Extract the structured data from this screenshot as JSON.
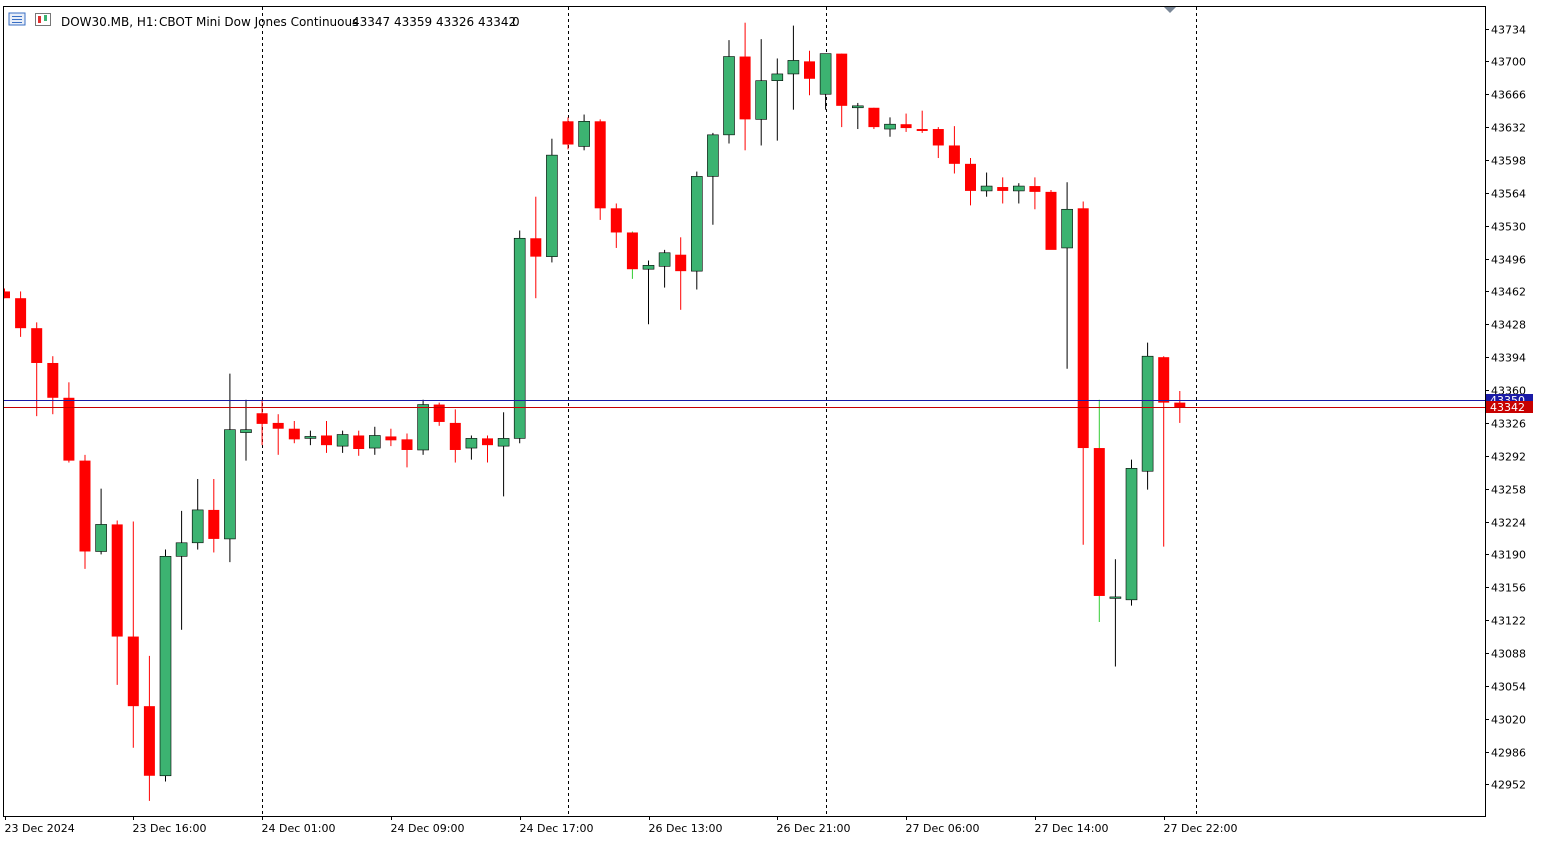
{
  "header": {
    "symbol": "DOW30.MB, H1:",
    "description": "CBOT Mini Dow Jones Continuous",
    "ohlc": "43347 43359 43326 43342",
    "volume": "0"
  },
  "colors": {
    "bull": "#3cb371",
    "bear": "#ff0000",
    "bid_line": "#1a1aa6",
    "ask_line": "#c80000",
    "frame": "#000000",
    "grid_separator": "#000000"
  },
  "chart_data": {
    "type": "candlestick",
    "ylim": [
      42930,
      43750
    ],
    "y_ticks": [
      43734,
      43700,
      43666,
      43632,
      43598,
      43564,
      43530,
      43496,
      43462,
      43428,
      43394,
      43360,
      43326,
      43292,
      43258,
      43224,
      43190,
      43156,
      43122,
      43088,
      43054,
      43020,
      42986,
      42952
    ],
    "x_labels": [
      {
        "index": 0,
        "text": "23 Dec 2024"
      },
      {
        "index": 8,
        "text": "23 Dec 16:00"
      },
      {
        "index": 16,
        "text": "24 Dec 01:00"
      },
      {
        "index": 24,
        "text": "24 Dec 09:00"
      },
      {
        "index": 32,
        "text": "24 Dec 17:00"
      },
      {
        "index": 40,
        "text": "26 Dec 13:00"
      },
      {
        "index": 48,
        "text": "26 Dec 21:00"
      },
      {
        "index": 56,
        "text": "27 Dec 06:00"
      },
      {
        "index": 64,
        "text": "27 Dec 14:00"
      },
      {
        "index": 72,
        "text": "27 Dec 22:00"
      }
    ],
    "separators": [
      16,
      35,
      51,
      74
    ],
    "price_labels": [
      {
        "value": 43350,
        "text": "43350",
        "color": "#1a1aa6"
      },
      {
        "value": 43342,
        "text": "43342",
        "color": "#c80000"
      }
    ],
    "candles": [
      {
        "o": 43462,
        "h": 43465,
        "l": 43455,
        "c": 43455
      },
      {
        "o": 43455,
        "h": 43462,
        "l": 43415,
        "c": 43424
      },
      {
        "o": 43424,
        "h": 43430,
        "l": 43333,
        "c": 43388
      },
      {
        "o": 43388,
        "h": 43395,
        "l": 43335,
        "c": 43352
      },
      {
        "o": 43352,
        "h": 43368,
        "l": 43285,
        "c": 43287
      },
      {
        "o": 43287,
        "h": 43293,
        "l": 43175,
        "c": 43193
      },
      {
        "o": 43193,
        "h": 43258,
        "l": 43190,
        "c": 43221
      },
      {
        "o": 43221,
        "h": 43225,
        "l": 43055,
        "c": 43105
      },
      {
        "o": 43105,
        "h": 43224,
        "l": 42990,
        "c": 43033
      },
      {
        "o": 43033,
        "h": 43085,
        "l": 42935,
        "c": 42961
      },
      {
        "o": 42961,
        "h": 43195,
        "l": 42955,
        "c": 43188
      },
      {
        "o": 43188,
        "h": 43235,
        "l": 43112,
        "c": 43202
      },
      {
        "o": 43202,
        "h": 43268,
        "l": 43195,
        "c": 43236
      },
      {
        "o": 43236,
        "h": 43268,
        "l": 43192,
        "c": 43206
      },
      {
        "o": 43206,
        "h": 43377,
        "l": 43182,
        "c": 43319
      },
      {
        "o": 43316,
        "h": 43350,
        "l": 43287,
        "c": 43319
      },
      {
        "o": 43336,
        "h": 43350,
        "l": 43303,
        "c": 43325
      },
      {
        "o": 43326,
        "h": 43335,
        "l": 43293,
        "c": 43320
      },
      {
        "o": 43320,
        "h": 43328,
        "l": 43305,
        "c": 43309
      },
      {
        "o": 43310,
        "h": 43318,
        "l": 43303,
        "c": 43312
      },
      {
        "o": 43313,
        "h": 43328,
        "l": 43295,
        "c": 43303
      },
      {
        "o": 43302,
        "h": 43318,
        "l": 43295,
        "c": 43314
      },
      {
        "o": 43313,
        "h": 43318,
        "l": 43292,
        "c": 43299
      },
      {
        "o": 43300,
        "h": 43322,
        "l": 43293,
        "c": 43313
      },
      {
        "o": 43312,
        "h": 43320,
        "l": 43302,
        "c": 43308
      },
      {
        "o": 43309,
        "h": 43315,
        "l": 43280,
        "c": 43298
      },
      {
        "o": 43298,
        "h": 43350,
        "l": 43293,
        "c": 43345
      },
      {
        "o": 43345,
        "h": 43347,
        "l": 43323,
        "c": 43327
      },
      {
        "o": 43326,
        "h": 43340,
        "l": 43285,
        "c": 43298
      },
      {
        "o": 43300,
        "h": 43313,
        "l": 43288,
        "c": 43310
      },
      {
        "o": 43310,
        "h": 43313,
        "l": 43285,
        "c": 43303
      },
      {
        "o": 43302,
        "h": 43337,
        "l": 43250,
        "c": 43310
      },
      {
        "o": 43310,
        "h": 43525,
        "l": 43305,
        "c": 43517
      },
      {
        "o": 43517,
        "h": 43560,
        "l": 43455,
        "c": 43498
      },
      {
        "o": 43498,
        "h": 43620,
        "l": 43492,
        "c": 43603
      },
      {
        "o": 43638,
        "h": 43642,
        "l": 43609,
        "c": 43614
      },
      {
        "o": 43612,
        "h": 43645,
        "l": 43608,
        "c": 43638
      },
      {
        "o": 43638,
        "h": 43640,
        "l": 43536,
        "c": 43548
      },
      {
        "o": 43548,
        "h": 43553,
        "l": 43507,
        "c": 43523
      },
      {
        "o": 43523,
        "h": 43524,
        "l": 43475,
        "c": 43485
      },
      {
        "o": 43485,
        "h": 43494,
        "l": 43428,
        "c": 43489
      },
      {
        "o": 43488,
        "h": 43505,
        "l": 43466,
        "c": 43502
      },
      {
        "o": 43500,
        "h": 43518,
        "l": 43443,
        "c": 43483
      },
      {
        "o": 43483,
        "h": 43586,
        "l": 43464,
        "c": 43581
      },
      {
        "o": 43581,
        "h": 43626,
        "l": 43531,
        "c": 43624
      },
      {
        "o": 43624,
        "h": 43722,
        "l": 43615,
        "c": 43705
      },
      {
        "o": 43705,
        "h": 43740,
        "l": 43608,
        "c": 43640
      },
      {
        "o": 43640,
        "h": 43723,
        "l": 43613,
        "c": 43680
      },
      {
        "o": 43680,
        "h": 43703,
        "l": 43618,
        "c": 43687
      },
      {
        "o": 43687,
        "h": 43737,
        "l": 43650,
        "c": 43701
      },
      {
        "o": 43700,
        "h": 43711,
        "l": 43665,
        "c": 43682
      },
      {
        "o": 43666,
        "h": 43708,
        "l": 43650,
        "c": 43708
      },
      {
        "o": 43708,
        "h": 43708,
        "l": 43632,
        "c": 43654
      },
      {
        "o": 43652,
        "h": 43657,
        "l": 43630,
        "c": 43654
      },
      {
        "o": 43652,
        "h": 43652,
        "l": 43630,
        "c": 43632
      },
      {
        "o": 43630,
        "h": 43642,
        "l": 43622,
        "c": 43635
      },
      {
        "o": 43635,
        "h": 43646,
        "l": 43627,
        "c": 43631
      },
      {
        "o": 43630,
        "h": 43649,
        "l": 43626,
        "c": 43628
      },
      {
        "o": 43630,
        "h": 43632,
        "l": 43600,
        "c": 43613
      },
      {
        "o": 43613,
        "h": 43633,
        "l": 43584,
        "c": 43594
      },
      {
        "o": 43594,
        "h": 43600,
        "l": 43551,
        "c": 43566
      },
      {
        "o": 43566,
        "h": 43585,
        "l": 43560,
        "c": 43571
      },
      {
        "o": 43570,
        "h": 43580,
        "l": 43553,
        "c": 43566
      },
      {
        "o": 43566,
        "h": 43574,
        "l": 43553,
        "c": 43571
      },
      {
        "o": 43571,
        "h": 43580,
        "l": 43547,
        "c": 43565
      },
      {
        "o": 43565,
        "h": 43567,
        "l": 43507,
        "c": 43505
      },
      {
        "o": 43507,
        "h": 43575,
        "l": 43382,
        "c": 43547
      },
      {
        "o": 43548,
        "h": 43555,
        "l": 43200,
        "c": 43300
      },
      {
        "o": 43300,
        "h": 43350,
        "l": 43120,
        "c": 43147
      },
      {
        "o": 43145,
        "h": 43185,
        "l": 43074,
        "c": 43146
      },
      {
        "o": 43143,
        "h": 43288,
        "l": 43137,
        "c": 43279
      },
      {
        "o": 43276,
        "h": 43409,
        "l": 43257,
        "c": 43395
      },
      {
        "o": 43394,
        "h": 43395,
        "l": 43198,
        "c": 43347
      },
      {
        "o": 43347,
        "h": 43359,
        "l": 43326,
        "c": 43342
      }
    ]
  }
}
